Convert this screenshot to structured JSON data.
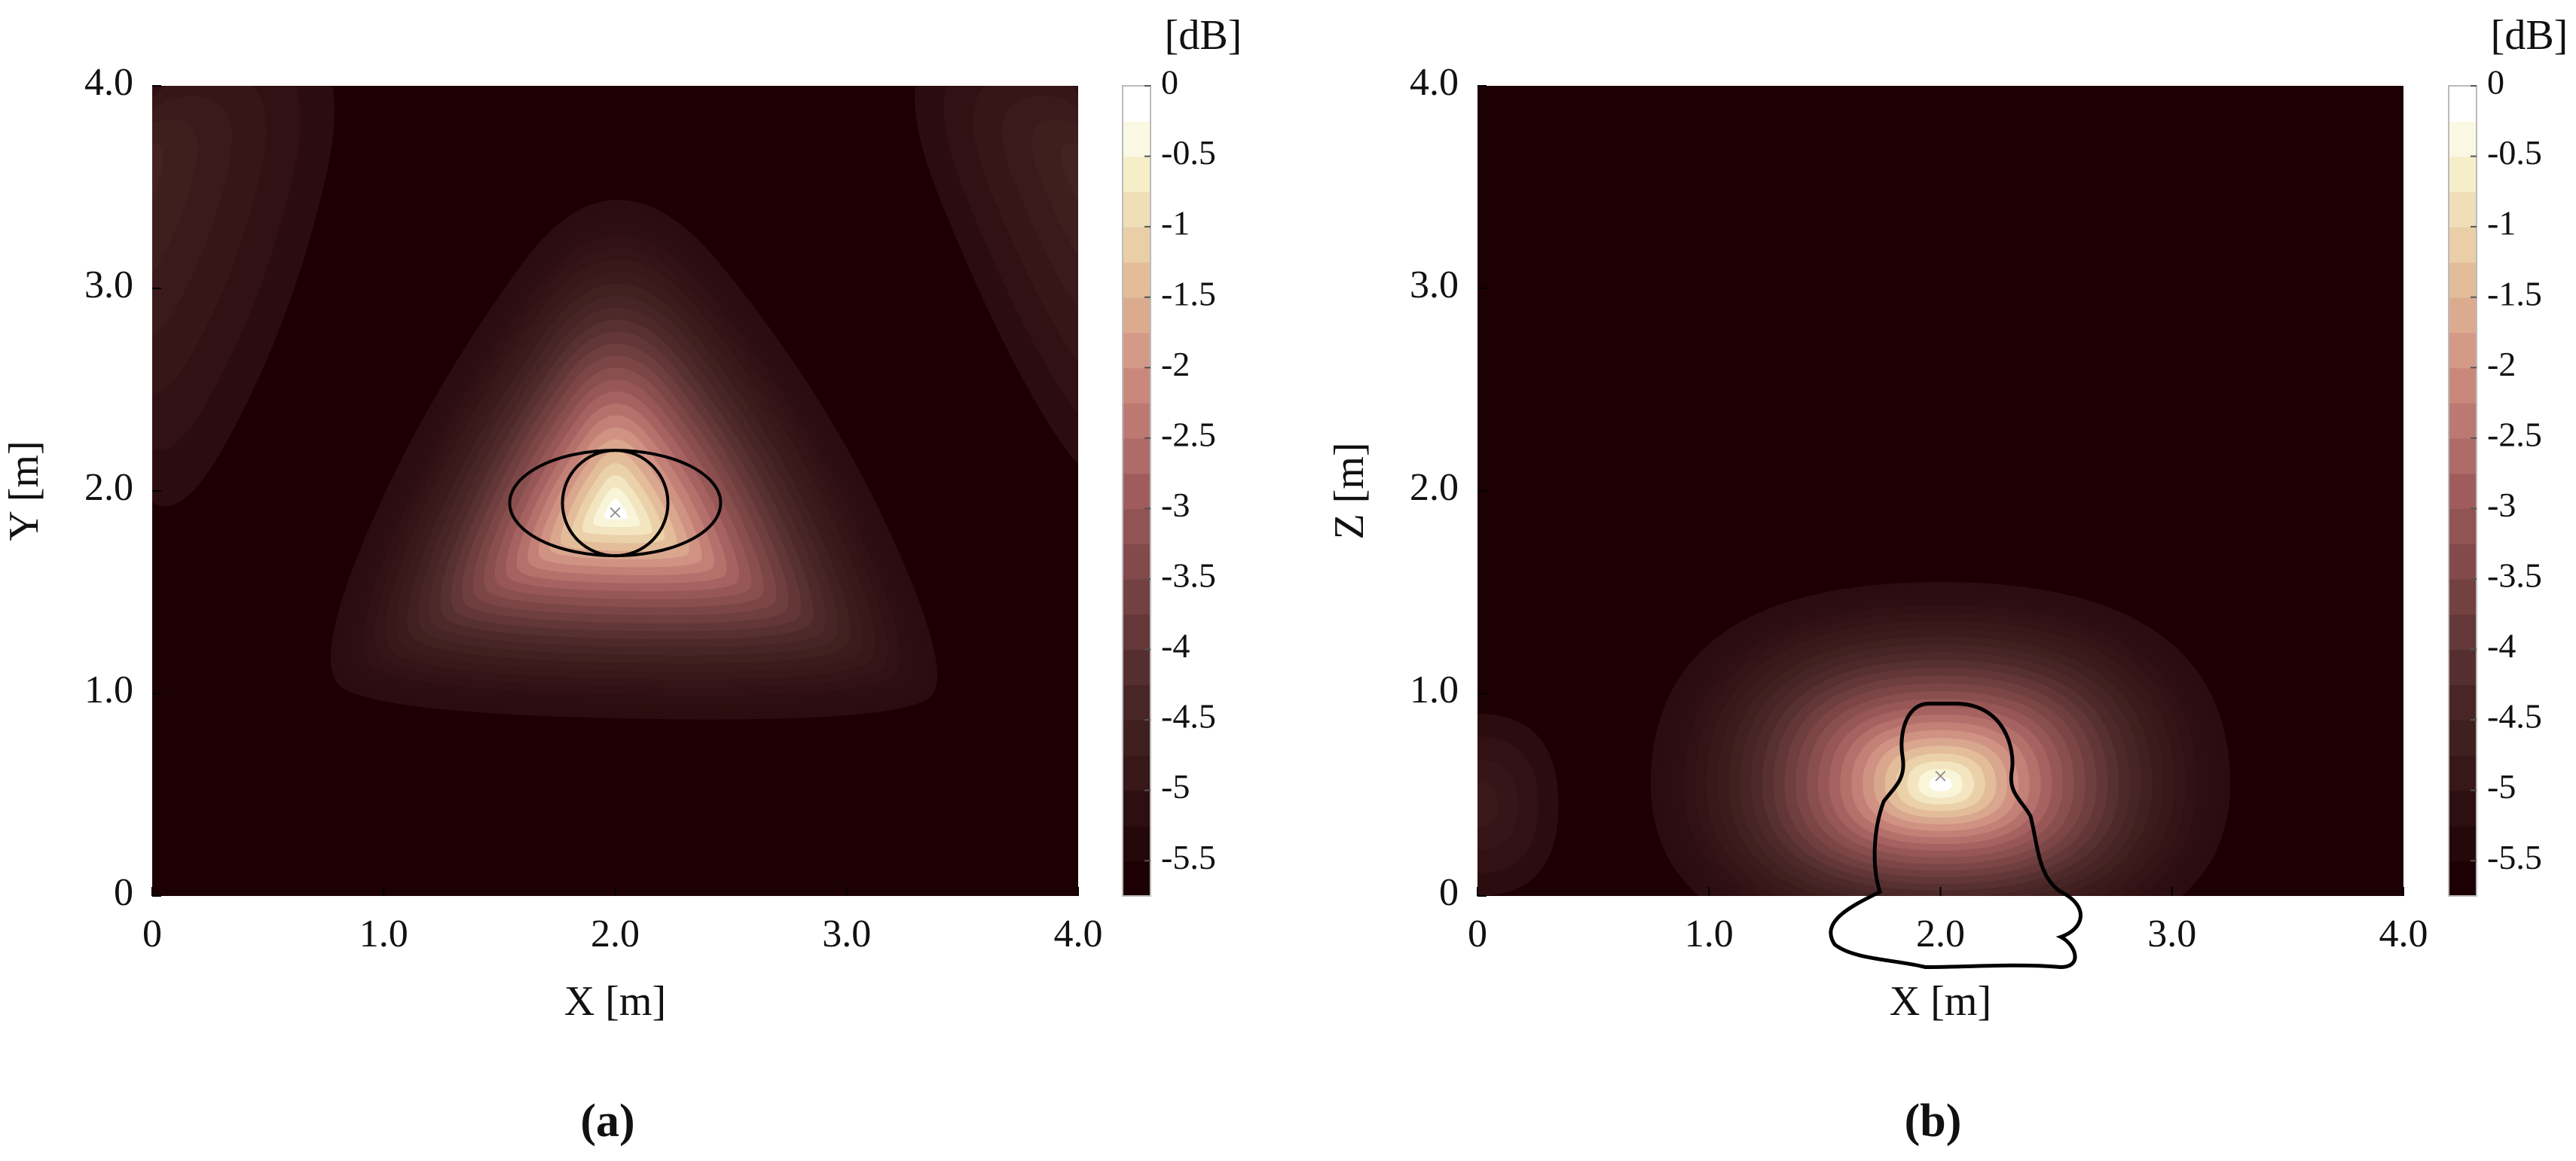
{
  "chart_data": [
    {
      "type": "contour",
      "x_label": "X [m]",
      "y_label": "Y [m]",
      "caption": "(a)",
      "xlim": [
        0,
        4
      ],
      "ylim": [
        0,
        4
      ],
      "xticks": [
        0,
        {
          "value": 1,
          "label": "1.0"
        },
        {
          "value": 2,
          "label": "2.0"
        },
        {
          "value": 3,
          "label": "3.0"
        },
        {
          "value": 4,
          "label": "4.0"
        }
      ],
      "yticks": [
        0,
        {
          "value": 1,
          "label": "1.0"
        },
        {
          "value": 2,
          "label": "2.0"
        },
        {
          "value": 3,
          "label": "3.0"
        },
        {
          "value": 4,
          "label": "4.0"
        }
      ],
      "colorbar": {
        "label": "[dB]",
        "lim": [
          -5.75,
          0
        ],
        "ticks": [
          0,
          -0.5,
          -1,
          -1.5,
          -2,
          -2.5,
          -3,
          -3.5,
          -4,
          -4.5,
          -5,
          -5.5
        ]
      }
    },
    {
      "type": "contour",
      "x_label": "X [m]",
      "y_label": "Z [m]",
      "caption": "(b)",
      "xlim": [
        0,
        4
      ],
      "ylim": [
        0,
        4
      ],
      "xticks": [
        0,
        {
          "value": 1,
          "label": "1.0"
        },
        {
          "value": 2,
          "label": "2.0"
        },
        {
          "value": 3,
          "label": "3.0"
        },
        {
          "value": 4,
          "label": "4.0"
        }
      ],
      "yticks": [
        0,
        {
          "value": 1,
          "label": "1.0"
        },
        {
          "value": 2,
          "label": "2.0"
        },
        {
          "value": 3,
          "label": "3.0"
        },
        {
          "value": 4,
          "label": "4.0"
        }
      ],
      "colorbar": {
        "label": "[dB]",
        "lim": [
          -5.75,
          0
        ],
        "ticks": [
          0,
          -0.5,
          -1,
          -1.5,
          -2,
          -2.5,
          -3,
          -3.5,
          -4,
          -4.5,
          -5,
          -5.5
        ]
      }
    }
  ]
}
